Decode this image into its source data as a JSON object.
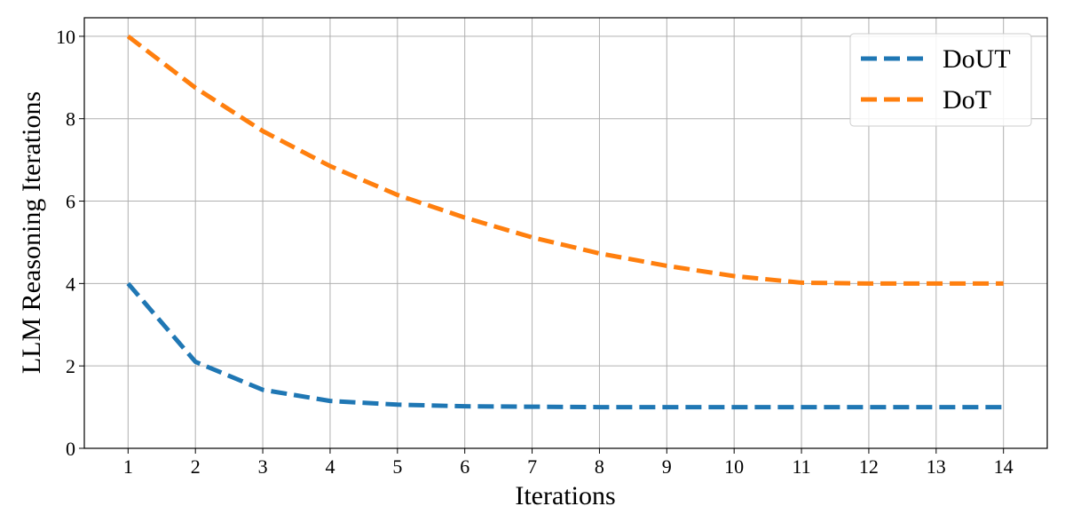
{
  "chart_data": {
    "type": "line",
    "title": "",
    "xlabel": "Iterations",
    "ylabel": "LLM Reasoning Iterations",
    "x": [
      1,
      2,
      3,
      4,
      5,
      6,
      7,
      8,
      9,
      10,
      11,
      12,
      13,
      14
    ],
    "xticks": [
      "1",
      "2",
      "3",
      "4",
      "5",
      "6",
      "7",
      "8",
      "9",
      "10",
      "11",
      "12",
      "13",
      "14"
    ],
    "yticks": [
      "0",
      "2",
      "4",
      "6",
      "8",
      "10"
    ],
    "xlim": [
      0.35,
      14.65
    ],
    "ylim": [
      0,
      10.45
    ],
    "grid": true,
    "legend_position": "top-right",
    "line_style": "dashed",
    "series": [
      {
        "name": "DoUT",
        "color": "#1f77b4",
        "values": [
          4.0,
          2.1,
          1.42,
          1.15,
          1.06,
          1.02,
          1.01,
          1.0,
          1.0,
          1.0,
          1.0,
          1.0,
          1.0,
          1.0
        ]
      },
      {
        "name": "DoT",
        "color": "#ff7f0e",
        "values": [
          10.0,
          8.75,
          7.7,
          6.85,
          6.15,
          5.6,
          5.12,
          4.73,
          4.43,
          4.18,
          4.02,
          4.0,
          4.0,
          4.0
        ]
      }
    ]
  }
}
